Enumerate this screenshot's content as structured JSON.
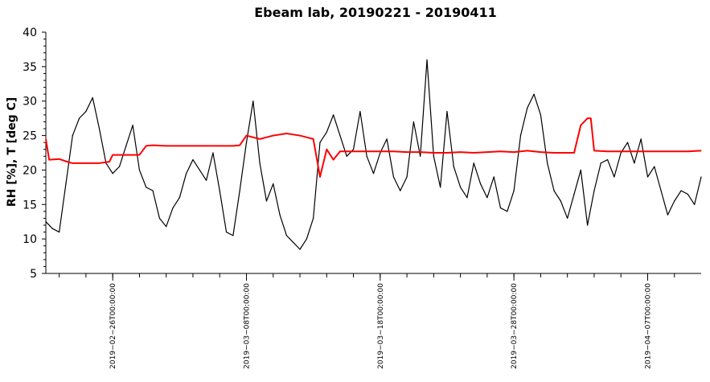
{
  "chart_data": {
    "type": "line",
    "title": "Ebeam lab, 20190221 - 20190411",
    "ylabel": "RH [%], T [deg C]",
    "xlabel": "",
    "xlim": [
      "2019-02-21T00:00:00",
      "2019-04-11T00:00:00"
    ],
    "ylim": [
      5,
      40
    ],
    "yticks": [
      5,
      10,
      15,
      20,
      25,
      30,
      35,
      40
    ],
    "xtick_labels": [
      {
        "label": "2019−02−26T00:00:00",
        "date": "2019-02-26T00:00:00"
      },
      {
        "label": "2019−03−08T00:00:00",
        "date": "2019-03-08T00:00:00"
      },
      {
        "label": "2019−03−18T00:00:00",
        "date": "2019-03-18T00:00:00"
      },
      {
        "label": "2019−03−28T00:00:00",
        "date": "2019-03-28T00:00:00"
      },
      {
        "label": "2019−04−07T00:00:00",
        "date": "2019-04-07T00:00:00"
      }
    ],
    "minor_tick_interval_days": 2,
    "grid": false,
    "series": [
      {
        "color": "#000000",
        "x": [
          "2019-02-21T00:00:00",
          "2019-02-21T12:00:00",
          "2019-02-22T00:00:00",
          "2019-02-22T12:00:00",
          "2019-02-23T00:00:00",
          "2019-02-23T12:00:00",
          "2019-02-24T00:00:00",
          "2019-02-24T12:00:00",
          "2019-02-25T00:00:00",
          "2019-02-25T12:00:00",
          "2019-02-26T00:00:00",
          "2019-02-26T12:00:00",
          "2019-02-27T00:00:00",
          "2019-02-27T12:00:00",
          "2019-02-28T00:00:00",
          "2019-02-28T12:00:00",
          "2019-03-01T00:00:00",
          "2019-03-01T12:00:00",
          "2019-03-02T00:00:00",
          "2019-03-02T12:00:00",
          "2019-03-03T00:00:00",
          "2019-03-03T12:00:00",
          "2019-03-04T00:00:00",
          "2019-03-04T12:00:00",
          "2019-03-05T00:00:00",
          "2019-03-05T12:00:00",
          "2019-03-06T00:00:00",
          "2019-03-06T12:00:00",
          "2019-03-07T00:00:00",
          "2019-03-07T12:00:00",
          "2019-03-08T00:00:00",
          "2019-03-08T12:00:00",
          "2019-03-09T00:00:00",
          "2019-03-09T12:00:00",
          "2019-03-10T00:00:00",
          "2019-03-10T12:00:00",
          "2019-03-11T00:00:00",
          "2019-03-11T12:00:00",
          "2019-03-12T00:00:00",
          "2019-03-12T12:00:00",
          "2019-03-13T00:00:00",
          "2019-03-13T12:00:00",
          "2019-03-14T00:00:00",
          "2019-03-14T12:00:00",
          "2019-03-15T00:00:00",
          "2019-03-15T12:00:00",
          "2019-03-16T00:00:00",
          "2019-03-16T12:00:00",
          "2019-03-17T00:00:00",
          "2019-03-17T12:00:00",
          "2019-03-18T00:00:00",
          "2019-03-18T12:00:00",
          "2019-03-19T00:00:00",
          "2019-03-19T12:00:00",
          "2019-03-20T00:00:00",
          "2019-03-20T12:00:00",
          "2019-03-21T00:00:00",
          "2019-03-21T12:00:00",
          "2019-03-22T00:00:00",
          "2019-03-22T12:00:00",
          "2019-03-23T00:00:00",
          "2019-03-23T12:00:00",
          "2019-03-24T00:00:00",
          "2019-03-24T12:00:00",
          "2019-03-25T00:00:00",
          "2019-03-25T12:00:00",
          "2019-03-26T00:00:00",
          "2019-03-26T12:00:00",
          "2019-03-27T00:00:00",
          "2019-03-27T12:00:00",
          "2019-03-28T00:00:00",
          "2019-03-28T12:00:00",
          "2019-03-29T00:00:00",
          "2019-03-29T12:00:00",
          "2019-03-30T00:00:00",
          "2019-03-30T12:00:00",
          "2019-03-31T00:00:00",
          "2019-03-31T12:00:00",
          "2019-04-01T00:00:00",
          "2019-04-01T12:00:00",
          "2019-04-02T00:00:00",
          "2019-04-02T12:00:00",
          "2019-04-03T00:00:00",
          "2019-04-03T12:00:00",
          "2019-04-04T00:00:00",
          "2019-04-04T12:00:00",
          "2019-04-05T00:00:00",
          "2019-04-05T12:00:00",
          "2019-04-06T00:00:00",
          "2019-04-06T12:00:00",
          "2019-04-07T00:00:00",
          "2019-04-07T12:00:00",
          "2019-04-08T00:00:00",
          "2019-04-08T12:00:00",
          "2019-04-09T00:00:00",
          "2019-04-09T12:00:00",
          "2019-04-10T00:00:00",
          "2019-04-10T12:00:00",
          "2019-04-11T00:00:00"
        ],
        "y": [
          12.5,
          11.5,
          11.0,
          18.0,
          25.0,
          27.5,
          28.5,
          30.5,
          26.0,
          21.0,
          19.5,
          20.5,
          23.5,
          26.5,
          20.0,
          17.5,
          17.0,
          13.0,
          11.8,
          14.5,
          16.0,
          19.5,
          21.5,
          20.0,
          18.5,
          22.5,
          17.0,
          11.0,
          10.5,
          17.0,
          24.0,
          30.0,
          21.0,
          15.5,
          18.0,
          13.5,
          10.5,
          9.5,
          8.5,
          10.0,
          13.0,
          24.0,
          25.5,
          28.0,
          25.0,
          22.0,
          23.0,
          28.5,
          22.0,
          19.5,
          22.5,
          24.5,
          19.0,
          17.0,
          19.0,
          27.0,
          22.0,
          36.0,
          22.0,
          17.5,
          28.5,
          20.5,
          17.5,
          16.0,
          21.0,
          18.0,
          16.0,
          19.0,
          14.5,
          14.0,
          17.0,
          25.0,
          29.0,
          31.0,
          28.0,
          21.0,
          17.0,
          15.5,
          13.0,
          16.5,
          20.0,
          12.0,
          17.0,
          21.0,
          21.5,
          19.0,
          22.5,
          24.0,
          21.0,
          24.5,
          19.0,
          20.5,
          17.0,
          13.5,
          15.5,
          17.0,
          16.5,
          15.0,
          19.0
        ]
      },
      {
        "color": "#ff0000",
        "x": [
          "2019-02-21T00:00:00",
          "2019-02-21T06:00:00",
          "2019-02-22T00:00:00",
          "2019-02-22T18:00:00",
          "2019-02-23T00:00:00",
          "2019-02-24T00:00:00",
          "2019-02-25T00:00:00",
          "2019-02-25T18:00:00",
          "2019-02-26T00:00:00",
          "2019-02-27T00:00:00",
          "2019-02-28T00:00:00",
          "2019-02-28T12:00:00",
          "2019-03-01T00:00:00",
          "2019-03-02T00:00:00",
          "2019-03-03T00:00:00",
          "2019-03-04T00:00:00",
          "2019-03-05T00:00:00",
          "2019-03-06T00:00:00",
          "2019-03-07T00:00:00",
          "2019-03-07T12:00:00",
          "2019-03-08T00:00:00",
          "2019-03-09T00:00:00",
          "2019-03-10T00:00:00",
          "2019-03-11T00:00:00",
          "2019-03-12T00:00:00",
          "2019-03-13T00:00:00",
          "2019-03-13T12:00:00",
          "2019-03-14T00:00:00",
          "2019-03-14T12:00:00",
          "2019-03-15T00:00:00",
          "2019-03-16T00:00:00",
          "2019-03-17T00:00:00",
          "2019-03-18T00:00:00",
          "2019-03-19T00:00:00",
          "2019-03-20T00:00:00",
          "2019-03-21T00:00:00",
          "2019-03-22T00:00:00",
          "2019-03-23T00:00:00",
          "2019-03-24T00:00:00",
          "2019-03-25T00:00:00",
          "2019-03-26T00:00:00",
          "2019-03-27T00:00:00",
          "2019-03-28T00:00:00",
          "2019-03-29T00:00:00",
          "2019-03-30T00:00:00",
          "2019-03-31T00:00:00",
          "2019-04-01T00:00:00",
          "2019-04-01T12:00:00",
          "2019-04-02T00:00:00",
          "2019-04-02T12:00:00",
          "2019-04-02T18:00:00",
          "2019-04-03T00:00:00",
          "2019-04-04T00:00:00",
          "2019-04-05T00:00:00",
          "2019-04-06T00:00:00",
          "2019-04-07T00:00:00",
          "2019-04-08T00:00:00",
          "2019-04-09T00:00:00",
          "2019-04-10T00:00:00",
          "2019-04-11T00:00:00"
        ],
        "y": [
          24.5,
          21.5,
          21.6,
          21.1,
          21.0,
          21.0,
          21.0,
          21.2,
          22.2,
          22.2,
          22.2,
          23.5,
          23.6,
          23.5,
          23.5,
          23.5,
          23.5,
          23.5,
          23.5,
          23.6,
          25.0,
          24.5,
          25.0,
          25.3,
          25.0,
          24.5,
          19.0,
          23.0,
          21.5,
          22.7,
          22.7,
          22.7,
          22.7,
          22.7,
          22.6,
          22.6,
          22.5,
          22.5,
          22.6,
          22.5,
          22.6,
          22.7,
          22.6,
          22.8,
          22.6,
          22.5,
          22.5,
          22.5,
          26.5,
          27.5,
          27.5,
          22.8,
          22.7,
          22.7,
          22.7,
          22.7,
          22.7,
          22.7,
          22.7,
          22.8
        ]
      }
    ]
  }
}
